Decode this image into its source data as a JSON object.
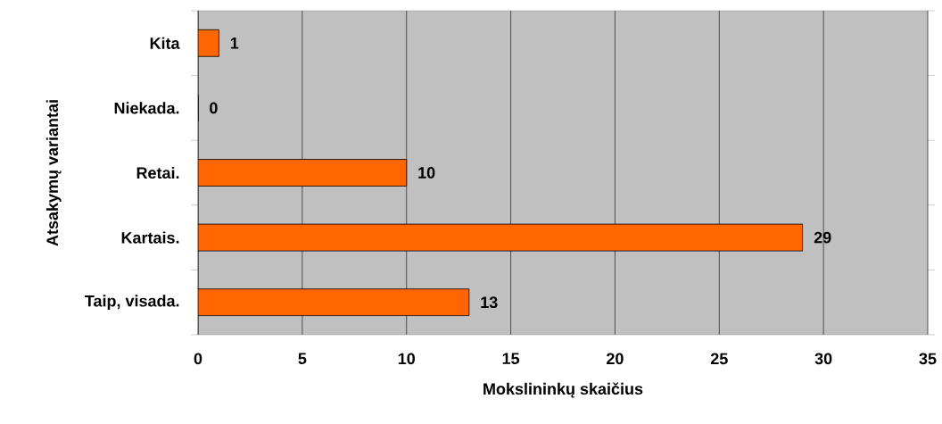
{
  "chart_data": {
    "type": "bar",
    "orientation": "horizontal",
    "categories": [
      "Kita",
      "Niekada.",
      "Retai.",
      "Kartais.",
      "Taip, visada."
    ],
    "values": [
      1,
      0,
      10,
      29,
      13
    ],
    "color": "#ff6600",
    "xlim": [
      0,
      35
    ],
    "xticks": [
      0,
      5,
      10,
      15,
      20,
      25,
      30,
      35
    ],
    "grid": "x",
    "data_labels": true,
    "xlabel": "Mokslininkų skaičius",
    "ylabel": "Atsakymų variantai"
  }
}
